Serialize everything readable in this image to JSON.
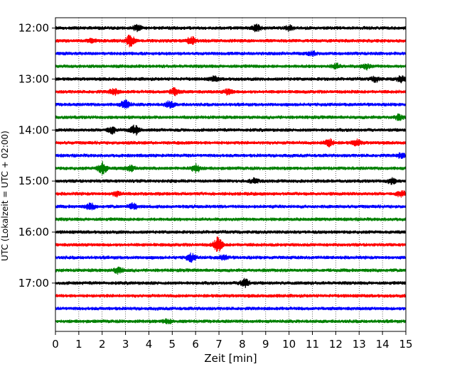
{
  "chart_data": {
    "type": "line",
    "subtype": "helicorder-seismogram",
    "xlabel": "Zeit  [min]",
    "ylabel": "UTC (Lokalzeit = UTC + 02:00)",
    "xlim": [
      0,
      15
    ],
    "x_ticks": [
      "0",
      "1",
      "2",
      "3",
      "4",
      "5",
      "6",
      "7",
      "8",
      "9",
      "10",
      "11",
      "12",
      "13",
      "14",
      "15"
    ],
    "grid": "vertical dotted lines at each minute",
    "row_interval_minutes": 15,
    "trace_colors": [
      "#000000",
      "#ff0000",
      "#0000ff",
      "#008000"
    ],
    "y_ticks": [
      {
        "label": "12:00",
        "row": 0
      },
      {
        "label": "13:00",
        "row": 4
      },
      {
        "label": "14:00",
        "row": 8
      },
      {
        "label": "15:00",
        "row": 12
      },
      {
        "label": "16:00",
        "row": 16
      },
      {
        "label": "17:00",
        "row": 20
      }
    ],
    "series": [
      {
        "start": "12:00",
        "color": "#000000",
        "events": [
          {
            "t": 3.5,
            "amp": 1.6
          },
          {
            "t": 8.6,
            "amp": 2.0
          },
          {
            "t": 10.0,
            "amp": 1.3
          }
        ]
      },
      {
        "start": "12:15",
        "color": "#ff0000",
        "events": [
          {
            "t": 3.2,
            "amp": 3.2
          },
          {
            "t": 5.8,
            "amp": 2.4
          },
          {
            "t": 1.6,
            "amp": 1.3
          }
        ]
      },
      {
        "start": "12:30",
        "color": "#0000ff",
        "events": [
          {
            "t": 11.0,
            "amp": 1.2
          }
        ]
      },
      {
        "start": "12:45",
        "color": "#008000",
        "events": [
          {
            "t": 12.0,
            "amp": 1.4
          },
          {
            "t": 13.3,
            "amp": 1.5
          }
        ]
      },
      {
        "start": "13:00",
        "color": "#000000",
        "events": [
          {
            "t": 6.8,
            "amp": 1.3
          },
          {
            "t": 13.7,
            "amp": 1.4
          },
          {
            "t": 14.8,
            "amp": 1.6
          }
        ]
      },
      {
        "start": "13:15",
        "color": "#ff0000",
        "events": [
          {
            "t": 2.5,
            "amp": 1.7
          },
          {
            "t": 5.1,
            "amp": 2.1
          },
          {
            "t": 7.4,
            "amp": 1.6
          }
        ]
      },
      {
        "start": "13:30",
        "color": "#0000ff",
        "events": [
          {
            "t": 3.0,
            "amp": 2.6
          },
          {
            "t": 4.9,
            "amp": 2.0
          }
        ]
      },
      {
        "start": "13:45",
        "color": "#008000",
        "events": [
          {
            "t": 14.7,
            "amp": 1.4
          }
        ]
      },
      {
        "start": "14:00",
        "color": "#000000",
        "events": [
          {
            "t": 2.4,
            "amp": 2.0
          },
          {
            "t": 3.4,
            "amp": 2.6
          }
        ]
      },
      {
        "start": "14:15",
        "color": "#ff0000",
        "events": [
          {
            "t": 11.7,
            "amp": 2.4
          },
          {
            "t": 12.9,
            "amp": 1.8
          }
        ]
      },
      {
        "start": "14:30",
        "color": "#0000ff",
        "events": [
          {
            "t": 14.8,
            "amp": 1.2
          }
        ]
      },
      {
        "start": "14:45",
        "color": "#008000",
        "events": [
          {
            "t": 2.0,
            "amp": 3.6
          },
          {
            "t": 3.2,
            "amp": 1.6
          },
          {
            "t": 6.0,
            "amp": 2.4
          }
        ]
      },
      {
        "start": "15:00",
        "color": "#000000",
        "events": [
          {
            "t": 8.5,
            "amp": 1.3
          },
          {
            "t": 14.4,
            "amp": 1.5
          }
        ]
      },
      {
        "start": "15:15",
        "color": "#ff0000",
        "events": [
          {
            "t": 2.6,
            "amp": 1.2
          },
          {
            "t": 14.8,
            "amp": 1.7
          }
        ]
      },
      {
        "start": "15:30",
        "color": "#0000ff",
        "events": [
          {
            "t": 1.5,
            "amp": 1.8
          },
          {
            "t": 3.3,
            "amp": 1.6
          }
        ]
      },
      {
        "start": "15:45",
        "color": "#008000",
        "events": []
      },
      {
        "start": "16:00",
        "color": "#000000",
        "events": []
      },
      {
        "start": "16:15",
        "color": "#ff0000",
        "events": [
          {
            "t": 6.95,
            "amp": 4.2
          }
        ]
      },
      {
        "start": "16:30",
        "color": "#0000ff",
        "events": [
          {
            "t": 5.8,
            "amp": 2.2
          },
          {
            "t": 7.2,
            "amp": 1.3
          }
        ]
      },
      {
        "start": "16:45",
        "color": "#008000",
        "events": [
          {
            "t": 2.7,
            "amp": 1.8
          }
        ]
      },
      {
        "start": "17:00",
        "color": "#000000",
        "events": [
          {
            "t": 8.1,
            "amp": 2.6
          }
        ]
      },
      {
        "start": "17:15",
        "color": "#ff0000",
        "events": []
      },
      {
        "start": "17:30",
        "color": "#0000ff",
        "events": []
      },
      {
        "start": "17:45",
        "color": "#008000",
        "events": [
          {
            "t": 4.8,
            "amp": 1.3
          }
        ]
      }
    ]
  }
}
